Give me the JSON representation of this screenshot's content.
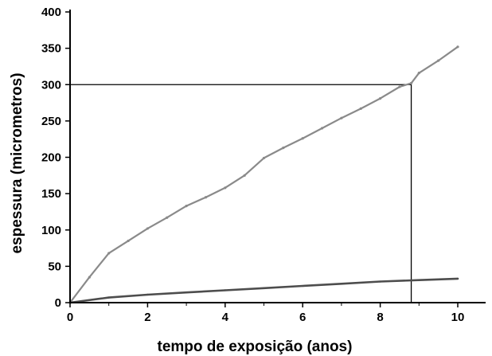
{
  "chart_data": {
    "type": "line",
    "xlabel": "tempo de exposição (anos)",
    "ylabel": "espessura (micrometros)",
    "xlim": [
      0,
      10.9
    ],
    "ylim": [
      0,
      400
    ],
    "xticks": [
      0,
      2,
      4,
      6,
      8,
      10
    ],
    "yticks": [
      0,
      50,
      100,
      150,
      200,
      250,
      300,
      350,
      400
    ],
    "xtick_labels": [
      "0",
      "2",
      "4",
      "6",
      "8",
      "10"
    ],
    "ytick_labels": [
      "0",
      "50",
      "100",
      "150",
      "200",
      "250",
      "300",
      "350",
      "400"
    ],
    "grid": false,
    "series": [
      {
        "x": [
          0,
          0.5,
          1,
          1.5,
          2,
          2.5,
          3,
          3.5,
          4,
          4.5,
          5,
          5.5,
          6,
          6.5,
          7,
          7.5,
          8,
          8.5,
          8.8,
          9,
          9.5,
          10
        ],
        "values": [
          0,
          35,
          68,
          85,
          102,
          117,
          133,
          145,
          158,
          175,
          199,
          213,
          226,
          240,
          254,
          267,
          281,
          297,
          302,
          316,
          333,
          352
        ],
        "color": "#8a8a8a"
      },
      {
        "x": [
          0,
          1,
          2,
          3,
          4,
          5,
          6,
          7,
          8,
          9,
          10
        ],
        "values": [
          0,
          7,
          11,
          14,
          17,
          20,
          23,
          26,
          29,
          31,
          33
        ],
        "color": "#4d4d4d"
      }
    ],
    "reference_lines": {
      "y": 300,
      "x": 8.8,
      "color": "#000000"
    }
  }
}
